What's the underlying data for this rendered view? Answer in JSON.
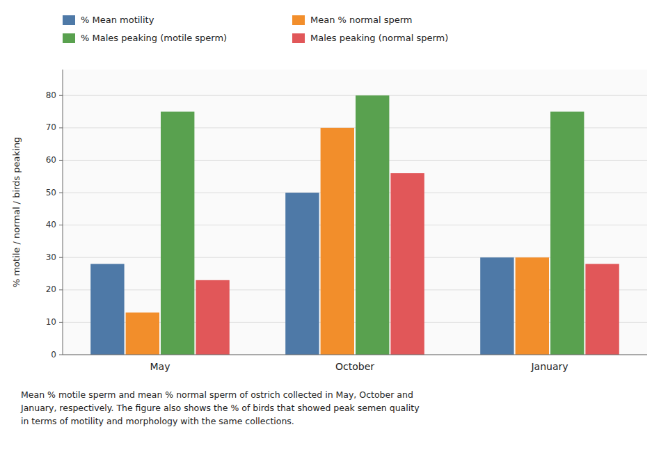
{
  "chart_data": {
    "type": "bar",
    "categories": [
      "May",
      "October",
      "January"
    ],
    "series": [
      {
        "name": "% Mean motility",
        "color": "#4e79a7",
        "values": [
          28,
          50,
          30
        ]
      },
      {
        "name": "Mean % normal sperm",
        "color": "#f28e2b",
        "values": [
          13,
          70,
          30
        ]
      },
      {
        "name": "% Males peaking (motile sperm)",
        "color": "#59a14f",
        "values": [
          75,
          80,
          75
        ]
      },
      {
        "name": "Males peaking (normal sperm)",
        "color": "#e15759",
        "values": [
          23,
          56,
          28
        ]
      }
    ],
    "ylabel": "% motile / normal / birds peaking",
    "ylim": [
      0,
      88
    ],
    "yticks": [
      0,
      10,
      20,
      30,
      40,
      50,
      60,
      70,
      80
    ],
    "grid": true,
    "legend": "top",
    "caption": "Mean % motile sperm and mean % normal sperm of ostrich collected in May, October and\nJanuary, respectively. The figure also shows the % of birds that showed peak semen quality\nin terms of motility and morphology with the same collections."
  }
}
